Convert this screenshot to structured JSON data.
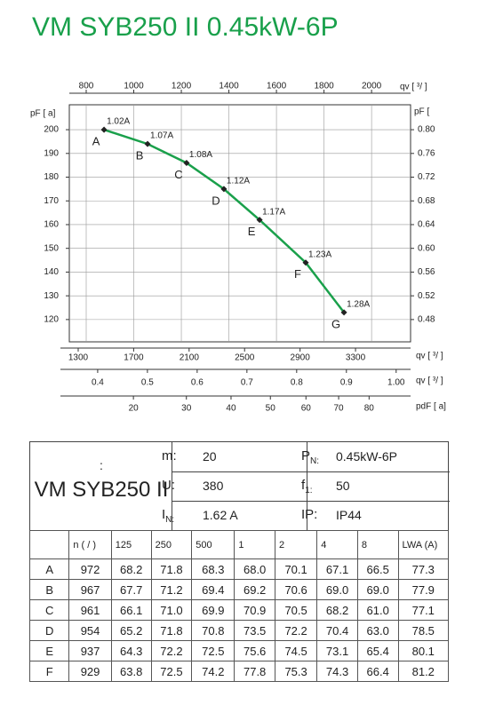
{
  "title": "VM SYB250 II 0.45kW-6P",
  "chart_data": {
    "type": "line",
    "x_label": "qv [  ³/  ]",
    "y_label": "pF [  a]",
    "y2_label": "pF [",
    "grid": true,
    "xlim": [
      729,
      2164
    ],
    "xticks": [
      800,
      1000,
      1200,
      1400,
      1600,
      1800,
      2000
    ],
    "ylim": [
      110.6,
      210.5
    ],
    "yticks": [
      120,
      130,
      140,
      150,
      160,
      170,
      180,
      190,
      200
    ],
    "y2lim": [
      0.4424,
      0.842
    ],
    "y2ticks": [
      0.48,
      0.52,
      0.56,
      {
        "value": 0.6,
        "label": "0.60"
      },
      0.64,
      0.68,
      0.72,
      0.76,
      {
        "value": 0.8,
        "label": "0.80"
      }
    ],
    "series": [
      {
        "color": "#1aa04b",
        "x": [
          875,
          1058,
          1222,
          1379,
          1529,
          1723,
          1884
        ],
        "values": [
          200,
          194,
          186,
          175,
          162,
          144,
          123
        ],
        "point_labels": [
          "A",
          "B",
          "C",
          "D",
          "E",
          "F",
          "G"
        ],
        "current_labels": [
          "1.02A",
          "1.07A",
          "1.08A",
          "1.12A",
          "1.17A",
          "1.23A",
          "1.28A"
        ]
      }
    ],
    "extra_axes": [
      {
        "label": "qv [  ³/  ]",
        "xlim": [
          1236,
          3697
        ],
        "xticks": [
          1300,
          1700,
          2100,
          2500,
          2900,
          3300
        ]
      },
      {
        "label": "qv [  ³/  ]",
        "xlim": [
          0.343,
          1.029
        ],
        "xticks": [
          0.4,
          0.5,
          0.6,
          0.7,
          0.8,
          0.9,
          {
            "value": 1,
            "label": "1.00"
          }
        ]
      },
      {
        "label": "pdF [  a]",
        "scale": "sqrt",
        "xlim": [
          10.6,
          94.7
        ],
        "xticks": [
          20,
          30,
          40,
          50,
          60,
          70,
          80
        ]
      }
    ]
  },
  "spec": {
    "model_prefix": ":",
    "model": "VM SYB250 II",
    "left": [
      {
        "label": "m:",
        "value": "20"
      },
      {
        "label": "U:",
        "value": "380"
      },
      {
        "label": "I",
        "sub": "N:",
        "value": "1.62  A"
      }
    ],
    "right": [
      {
        "label": "P",
        "sub": "N:",
        "value": "0.45kW-6P"
      },
      {
        "label": "f",
        "sub": "1:",
        "value": "50"
      },
      {
        "label": "IP:",
        "value": "IP44"
      }
    ]
  },
  "sound": {
    "columns": [
      "n ( / )",
      "125",
      "250",
      "500",
      "1",
      "2",
      "4",
      "8",
      "LWA    (A)"
    ],
    "rows": [
      [
        "A",
        "972",
        "68.2",
        "71.8",
        "68.3",
        "68.0",
        "70.1",
        "67.1",
        "66.5",
        "77.3"
      ],
      [
        "B",
        "967",
        "67.7",
        "71.2",
        "69.4",
        "69.2",
        "70.6",
        "69.0",
        "69.0",
        "77.9"
      ],
      [
        "C",
        "961",
        "66.1",
        "71.0",
        "69.9",
        "70.9",
        "70.5",
        "68.2",
        "61.0",
        "77.1"
      ],
      [
        "D",
        "954",
        "65.2",
        "71.8",
        "70.8",
        "73.5",
        "72.2",
        "70.4",
        "63.0",
        "78.5"
      ],
      [
        "E",
        "937",
        "64.3",
        "72.2",
        "72.5",
        "75.6",
        "74.5",
        "73.1",
        "65.4",
        "80.1"
      ],
      [
        "F",
        "929",
        "63.8",
        "72.5",
        "74.2",
        "77.8",
        "75.3",
        "74.3",
        "66.4",
        "81.2"
      ]
    ]
  }
}
